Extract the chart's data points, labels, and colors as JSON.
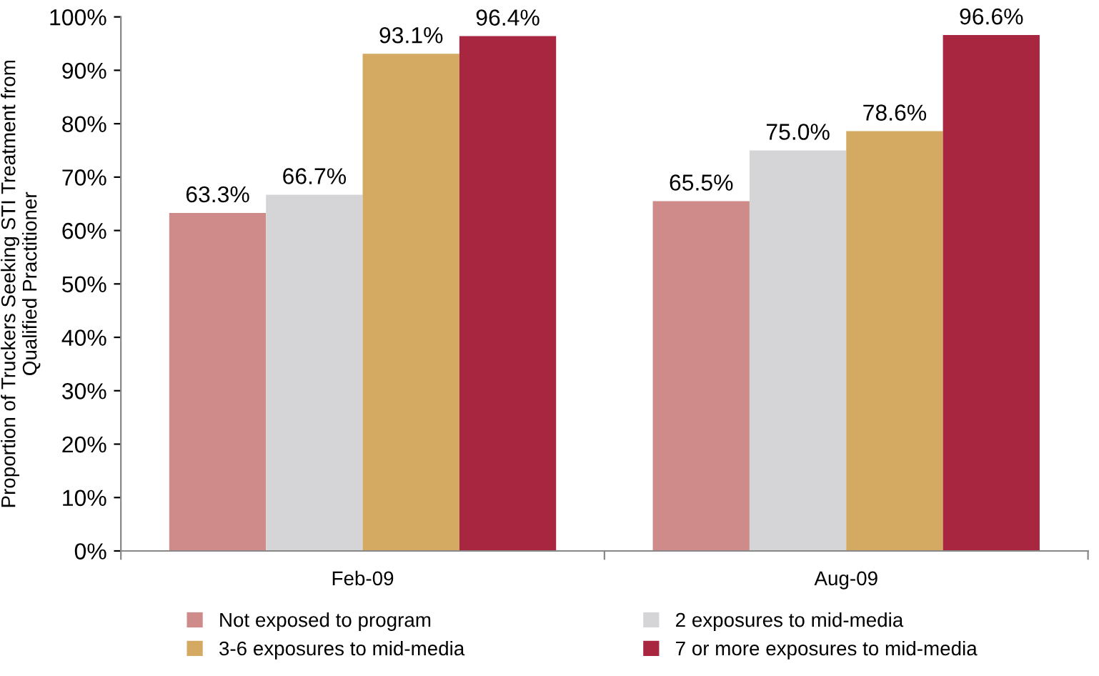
{
  "chart_data": {
    "type": "bar",
    "ylabel": "Proportion of Truckers Seeking STI Treatment from\nQualified Practitioner",
    "categories": [
      "Feb-09",
      "Aug-09"
    ],
    "series": [
      {
        "name": "Not exposed to program",
        "color": "#cf8a8a",
        "values": [
          63.3,
          65.5
        ],
        "value_labels": [
          "63.3%",
          "65.5%"
        ]
      },
      {
        "name": "2 exposures to mid-media",
        "color": "#d5d5d7",
        "values": [
          66.7,
          75.0
        ],
        "value_labels": [
          "66.7%",
          "75.0%"
        ]
      },
      {
        "name": "3-6 exposures to mid-media",
        "color": "#d4a962",
        "values": [
          93.1,
          78.6
        ],
        "value_labels": [
          "93.1%",
          "78.6%"
        ]
      },
      {
        "name": "7 or more exposures to mid-media",
        "color": "#a82640",
        "values": [
          96.4,
          96.6
        ],
        "value_labels": [
          "96.4%",
          "96.6%"
        ]
      }
    ],
    "ylim": [
      0,
      100
    ],
    "yticks": [
      {
        "value": 0,
        "label": "0%"
      },
      {
        "value": 10,
        "label": "10%"
      },
      {
        "value": 20,
        "label": "20%"
      },
      {
        "value": 30,
        "label": "30%"
      },
      {
        "value": 40,
        "label": "40%"
      },
      {
        "value": 50,
        "label": "50%"
      },
      {
        "value": 60,
        "label": "60%"
      },
      {
        "value": 70,
        "label": "70%"
      },
      {
        "value": 80,
        "label": "80%"
      },
      {
        "value": 90,
        "label": "90%"
      },
      {
        "value": 100,
        "label": "100%"
      }
    ],
    "grid": false,
    "legend": "bottom"
  }
}
